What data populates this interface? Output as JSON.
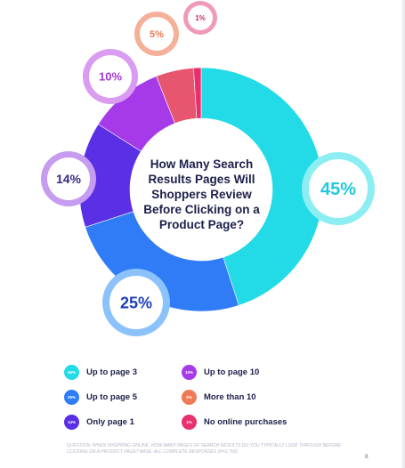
{
  "chart_data": {
    "type": "pie",
    "title": "How Many Search Results Pages Will Shoppers Review Before Clicking on a Product Page?",
    "slices": [
      {
        "label": "Up to page 3",
        "value": 45,
        "display": "45%",
        "color": "#22dbe6"
      },
      {
        "label": "Up to page 5",
        "value": 25,
        "display": "25%",
        "color": "#2f7cf6"
      },
      {
        "label": "Only page 1",
        "value": 14,
        "display": "14%",
        "color": "#5a2fe6"
      },
      {
        "label": "Up to page 10",
        "value": 10,
        "display": "10%",
        "color": "#a63ae8"
      },
      {
        "label": "More than 10",
        "value": 5,
        "display": "5%",
        "color": "#e6566e"
      },
      {
        "label": "No online purchases",
        "value": 1,
        "display": "1%",
        "color": "#e8306d"
      }
    ]
  },
  "bubbles": {
    "up_to_page_3": {
      "value": "45%",
      "color": "#22dbe6",
      "halo": "#8ceef3",
      "text_color": "#22c9dc"
    },
    "up_to_page_5": {
      "value": "25%",
      "color": "#2f7cf6",
      "halo": "#8cc2fb",
      "text_color": "#1f3fb8"
    },
    "only_page_1": {
      "value": "14%",
      "color": "#5a2fe6",
      "halo": "#c59cf0",
      "text_color": "#3a2a80"
    },
    "up_to_page_10": {
      "value": "10%",
      "color": "#a63ae8",
      "halo": "#d99cf0",
      "text_color": "#a03ad0"
    },
    "more_than_10": {
      "value": "5%",
      "color": "#e6566e",
      "halo": "#f5b09a",
      "text_color": "#ef7a55"
    },
    "no_online_purchases": {
      "value": "1%",
      "color": "#e8306d",
      "halo": "#f09ab8",
      "text_color": "#d4285a"
    }
  },
  "legend": [
    {
      "label": "Up to page 3",
      "value": "45%",
      "color": "#22dbe6"
    },
    {
      "label": "Up to page 10",
      "value": "10%",
      "color": "#a63ae8"
    },
    {
      "label": "Up to page 5",
      "value": "25%",
      "color": "#2f7cf6"
    },
    {
      "label": "More than 10",
      "value": "5%",
      "color": "#ef7a55"
    },
    {
      "label": "Only page 1",
      "value": "14%",
      "color": "#5a2fe6"
    },
    {
      "label": "No online purchases",
      "value": "1%",
      "color": "#e8306d"
    }
  ],
  "footnote": "Question: When shopping online, how many pages of search results do you typically look through before clicking on a product page? Base: All complete responses (n=2,700)",
  "page_number": "8"
}
